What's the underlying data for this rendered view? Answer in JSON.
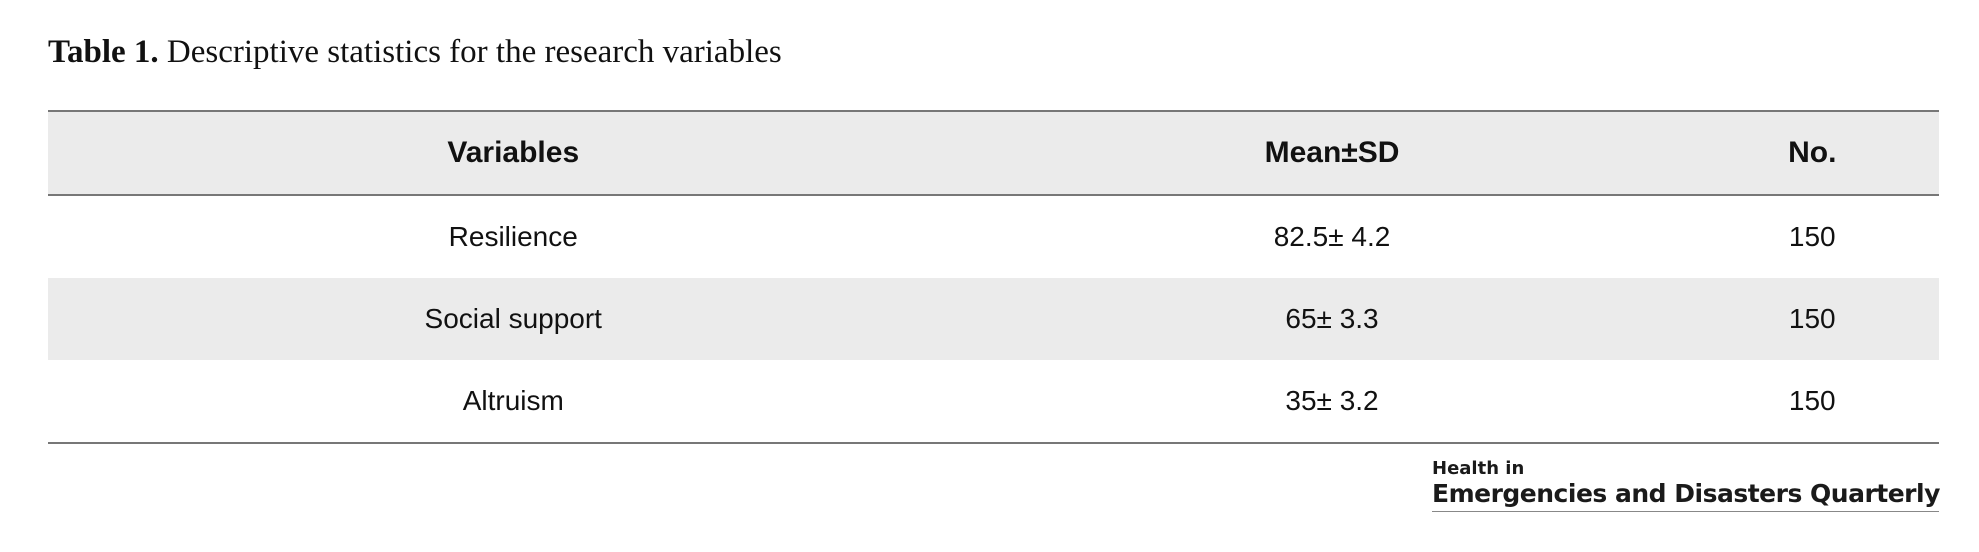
{
  "caption": {
    "label": "Table 1.",
    "text": "Descriptive statistics for the research variables"
  },
  "table": {
    "headers": [
      "Variables",
      "Mean±SD",
      "No."
    ],
    "rows": [
      [
        "Resilience",
        "82.5± 4.2",
        "150"
      ],
      [
        "Social support",
        "65± 3.3",
        "150"
      ],
      [
        "Altruism",
        "35± 3.2",
        "150"
      ]
    ]
  },
  "logo": {
    "line1": "Health in",
    "line2": "Emergencies and Disasters Quarterly"
  }
}
